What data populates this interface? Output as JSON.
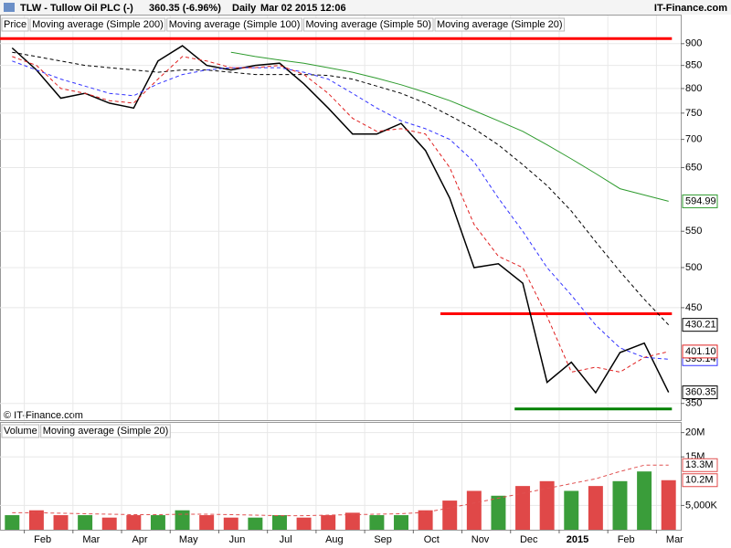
{
  "header": {
    "title": "TLW - Tullow Oil PLC (-)",
    "quote": "360.35 (-6.96%)",
    "interval": "Daily",
    "timestamp": "Mar 02 2015 12:06",
    "brand": "IT-Finance.com"
  },
  "chart_data": [
    {
      "type": "line",
      "log_scale": true,
      "grid": true,
      "watermark": "© IT-Finance.com",
      "ylim": [
        335,
        969
      ],
      "yticks": [
        350,
        450,
        500,
        550,
        650,
        700,
        750,
        800,
        850,
        900
      ],
      "hlines": [
        {
          "value": 912,
          "color": "#ff0000"
        },
        {
          "value": 443,
          "color": "#ff0000"
        },
        {
          "value": 345,
          "color": "#008000"
        }
      ],
      "series": [
        {
          "name": "Price",
          "color": "#000000",
          "values": [
            890,
            840,
            780,
            790,
            770,
            760,
            860,
            895,
            850,
            840,
            850,
            855,
            810,
            760,
            710,
            710,
            730,
            680,
            600,
            500,
            505,
            480,
            370,
            390,
            360,
            400,
            410,
            360.35
          ],
          "value_labels": [
            null,
            null,
            null,
            null,
            null,
            null,
            null,
            null,
            null,
            null,
            null,
            null,
            null,
            null,
            null,
            null,
            null,
            null,
            null,
            null,
            null,
            null,
            null,
            null,
            null,
            null,
            null,
            "360.35"
          ]
        },
        {
          "name": "Moving average (Simple 200)",
          "color": "#2e9b2e",
          "values": [
            null,
            null,
            null,
            null,
            null,
            null,
            null,
            null,
            null,
            880,
            870,
            862,
            855,
            845,
            835,
            822,
            808,
            792,
            775,
            755,
            735,
            715,
            690,
            665,
            640,
            615,
            605,
            594.99
          ],
          "value_labels": [
            null,
            null,
            null,
            null,
            null,
            null,
            null,
            null,
            null,
            null,
            null,
            null,
            null,
            null,
            null,
            null,
            null,
            null,
            null,
            null,
            null,
            null,
            null,
            null,
            null,
            null,
            null,
            "594.99"
          ]
        },
        {
          "name": "Moving average (Simple 100)",
          "color": "#000000",
          "values": [
            880,
            870,
            860,
            850,
            845,
            840,
            835,
            840,
            840,
            835,
            830,
            830,
            830,
            828,
            820,
            805,
            790,
            770,
            745,
            720,
            690,
            655,
            620,
            580,
            535,
            495,
            460,
            430.21
          ],
          "value_labels": [
            null,
            null,
            null,
            null,
            null,
            null,
            null,
            null,
            null,
            null,
            null,
            null,
            null,
            null,
            null,
            null,
            null,
            null,
            null,
            null,
            null,
            null,
            null,
            null,
            null,
            null,
            null,
            "430.21"
          ]
        },
        {
          "name": "Moving average (Simple 50)",
          "color": "#3333ff",
          "values": [
            860,
            840,
            820,
            805,
            790,
            785,
            810,
            830,
            840,
            845,
            845,
            845,
            835,
            820,
            790,
            760,
            735,
            720,
            700,
            660,
            600,
            550,
            500,
            465,
            430,
            405,
            395,
            393.14
          ],
          "value_labels": [
            null,
            null,
            null,
            null,
            null,
            null,
            null,
            null,
            null,
            null,
            null,
            null,
            null,
            null,
            null,
            null,
            null,
            null,
            null,
            null,
            null,
            null,
            null,
            null,
            null,
            null,
            null,
            "393.14"
          ]
        },
        {
          "name": "Moving average (Simple 20)",
          "color": "#e02020",
          "values": [
            870,
            850,
            800,
            790,
            775,
            770,
            820,
            870,
            860,
            845,
            845,
            850,
            830,
            790,
            740,
            715,
            720,
            710,
            650,
            560,
            515,
            500,
            440,
            380,
            385,
            380,
            395,
            401.1
          ],
          "value_labels": [
            null,
            null,
            null,
            null,
            null,
            null,
            null,
            null,
            null,
            null,
            null,
            null,
            null,
            null,
            null,
            null,
            null,
            null,
            null,
            null,
            null,
            null,
            null,
            null,
            null,
            null,
            null,
            "401.10"
          ]
        }
      ]
    },
    {
      "type": "bar",
      "grid": true,
      "categories": [
        null,
        "Feb",
        null,
        "Mar",
        null,
        "Apr",
        null,
        "May",
        null,
        "Jun",
        null,
        "Jul",
        null,
        "Aug",
        null,
        "Sep",
        null,
        "Oct",
        null,
        "Nov",
        null,
        "Dec",
        null,
        "2015",
        null,
        "Feb",
        null,
        "Mar"
      ],
      "ylim": [
        0,
        22000000
      ],
      "yticks": [
        {
          "value": 5000000,
          "label": "5,000K"
        },
        {
          "value": 15000000,
          "label": "15M"
        },
        {
          "value": 20000000,
          "label": "20M"
        }
      ],
      "colors": {
        "up": "#3a9d3a",
        "down": "#e04848"
      },
      "series": [
        {
          "name": "Volume",
          "type": "bar",
          "color": "#e04848",
          "values": [
            3000000,
            4000000,
            3000000,
            3000000,
            2500000,
            3000000,
            3000000,
            4000000,
            3000000,
            2500000,
            2500000,
            3000000,
            2500000,
            3000000,
            3500000,
            3000000,
            3000000,
            4000000,
            6000000,
            8000000,
            7000000,
            9000000,
            10000000,
            8000000,
            9000000,
            10000000,
            12000000,
            10200000
          ],
          "value_labels": [
            null,
            null,
            null,
            null,
            null,
            null,
            null,
            null,
            null,
            null,
            null,
            null,
            null,
            null,
            null,
            null,
            null,
            null,
            null,
            null,
            null,
            null,
            null,
            null,
            null,
            null,
            null,
            "10.2M"
          ]
        },
        {
          "name": "Moving average (Simple 20)",
          "type": "line",
          "color": "#e05050",
          "values": [
            3500000,
            3500000,
            3400000,
            3300000,
            3200000,
            3100000,
            3100000,
            3200000,
            3200000,
            3100000,
            3000000,
            2900000,
            2900000,
            3000000,
            3100000,
            3200000,
            3300000,
            3600000,
            4500000,
            5500000,
            6500000,
            7500000,
            8500000,
            9500000,
            10500000,
            12000000,
            13300000,
            13300000
          ],
          "value_labels": [
            null,
            null,
            null,
            null,
            null,
            null,
            null,
            null,
            null,
            null,
            null,
            null,
            null,
            null,
            null,
            null,
            null,
            null,
            null,
            null,
            null,
            null,
            null,
            null,
            null,
            null,
            null,
            "13.3M"
          ]
        }
      ]
    }
  ]
}
